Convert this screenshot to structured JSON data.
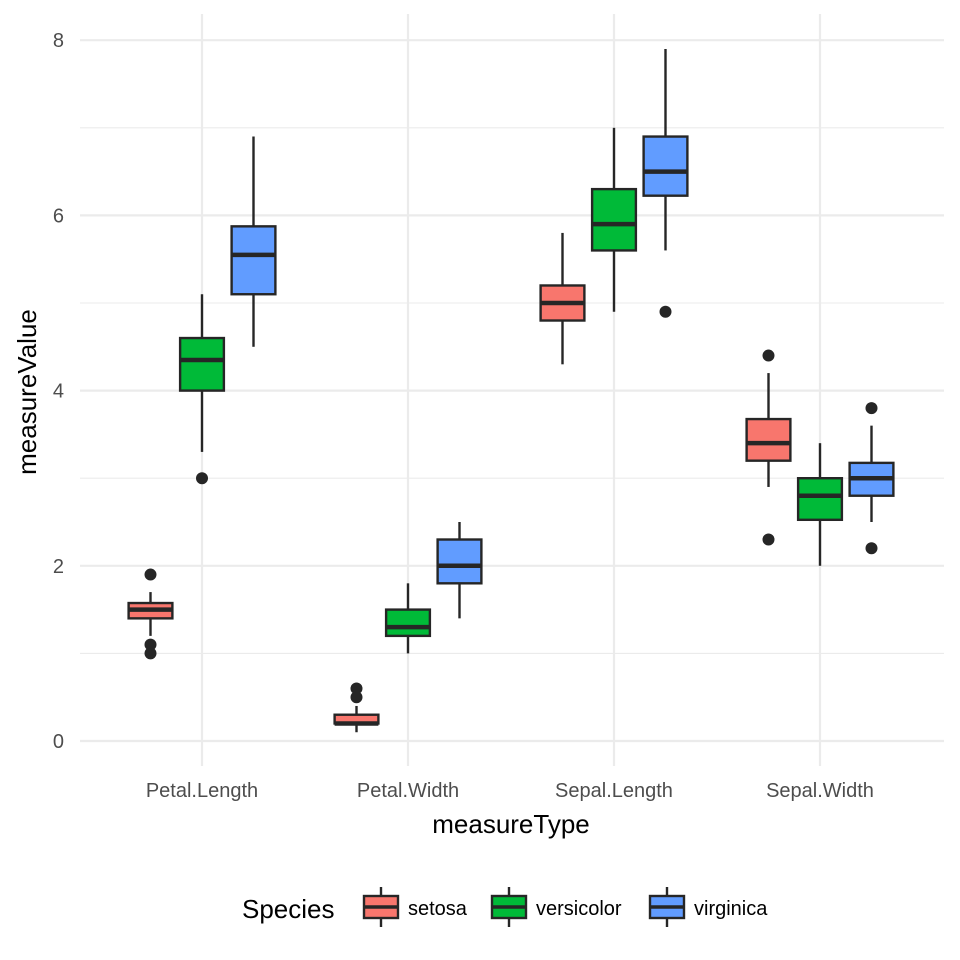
{
  "chart_data": {
    "type": "box",
    "categories": [
      "Petal.Length",
      "Petal.Width",
      "Sepal.Length",
      "Sepal.Width"
    ],
    "xlabel": "measureType",
    "ylabel": "measureValue",
    "ylim": [
      0,
      8
    ],
    "yticks": [
      "0",
      "2",
      "4",
      "6",
      "8"
    ],
    "grid": true,
    "legend": {
      "position": "bottom",
      "title": "Species"
    },
    "series": [
      {
        "name": "setosa",
        "color": "#F8766D",
        "boxes": [
          {
            "whisker_low": 1.2,
            "q1": 1.4,
            "median": 1.5,
            "q3": 1.575,
            "whisker_high": 1.7,
            "outliers": [
              1.0,
              1.1,
              1.9
            ]
          },
          {
            "whisker_low": 0.1,
            "q1": 0.2,
            "median": 0.2,
            "q3": 0.3,
            "whisker_high": 0.4,
            "outliers": [
              0.5,
              0.6
            ]
          },
          {
            "whisker_low": 4.3,
            "q1": 4.8,
            "median": 5.0,
            "q3": 5.2,
            "whisker_high": 5.8,
            "outliers": []
          },
          {
            "whisker_low": 2.9,
            "q1": 3.2,
            "median": 3.4,
            "q3": 3.675,
            "whisker_high": 4.2,
            "outliers": [
              2.3,
              4.4
            ]
          }
        ]
      },
      {
        "name": "versicolor",
        "color": "#00BA38",
        "boxes": [
          {
            "whisker_low": 3.3,
            "q1": 4.0,
            "median": 4.35,
            "q3": 4.6,
            "whisker_high": 5.1,
            "outliers": [
              3.0
            ]
          },
          {
            "whisker_low": 1.0,
            "q1": 1.2,
            "median": 1.3,
            "q3": 1.5,
            "whisker_high": 1.8,
            "outliers": []
          },
          {
            "whisker_low": 4.9,
            "q1": 5.6,
            "median": 5.9,
            "q3": 6.3,
            "whisker_high": 7.0,
            "outliers": []
          },
          {
            "whisker_low": 2.0,
            "q1": 2.525,
            "median": 2.8,
            "q3": 3.0,
            "whisker_high": 3.4,
            "outliers": []
          }
        ]
      },
      {
        "name": "virginica",
        "color": "#619CFF",
        "boxes": [
          {
            "whisker_low": 4.5,
            "q1": 5.1,
            "median": 5.55,
            "q3": 5.875,
            "whisker_high": 6.9,
            "outliers": []
          },
          {
            "whisker_low": 1.4,
            "q1": 1.8,
            "median": 2.0,
            "q3": 2.3,
            "whisker_high": 2.5,
            "outliers": []
          },
          {
            "whisker_low": 5.6,
            "q1": 6.225,
            "median": 6.5,
            "q3": 6.9,
            "whisker_high": 7.9,
            "outliers": [
              4.9
            ]
          },
          {
            "whisker_low": 2.5,
            "q1": 2.8,
            "median": 3.0,
            "q3": 3.175,
            "whisker_high": 3.6,
            "outliers": [
              2.2,
              3.8
            ]
          }
        ]
      }
    ]
  }
}
